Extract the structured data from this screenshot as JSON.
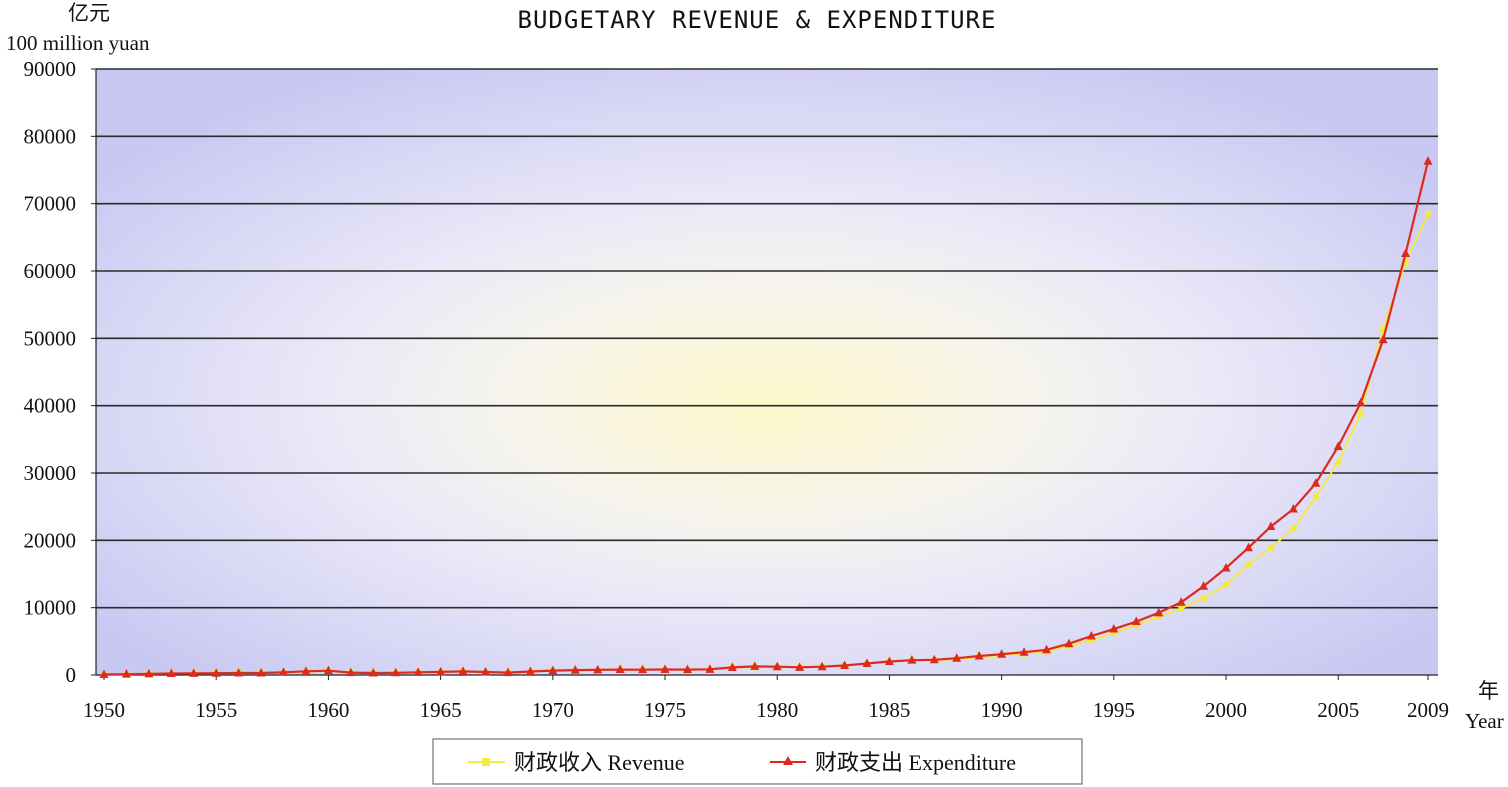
{
  "chart_data": {
    "type": "line",
    "title": "BUDGETARY REVENUE & EXPENDITURE",
    "y_unit_cn": "亿元",
    "y_unit_en": "100 million yuan",
    "x_unit_cn": "年",
    "x_unit_en": "Year",
    "ylim": [
      0,
      90000
    ],
    "xlim": [
      1950,
      2009
    ],
    "grid": true,
    "legend_position": "bottom",
    "yticks": [
      0,
      10000,
      20000,
      30000,
      40000,
      50000,
      60000,
      70000,
      80000,
      90000
    ],
    "xticks": [
      1950,
      1955,
      1960,
      1965,
      1970,
      1975,
      1980,
      1985,
      1990,
      1995,
      2000,
      2005,
      2009
    ],
    "x": [
      1950,
      1951,
      1952,
      1953,
      1954,
      1955,
      1956,
      1957,
      1958,
      1959,
      1960,
      1961,
      1962,
      1963,
      1964,
      1965,
      1966,
      1967,
      1968,
      1969,
      1970,
      1971,
      1972,
      1973,
      1974,
      1975,
      1976,
      1977,
      1978,
      1979,
      1980,
      1981,
      1982,
      1983,
      1984,
      1985,
      1986,
      1987,
      1988,
      1989,
      1990,
      1991,
      1992,
      1993,
      1994,
      1995,
      1996,
      1997,
      1998,
      1999,
      2000,
      2001,
      2002,
      2003,
      2004,
      2005,
      2006,
      2007,
      2008,
      2009
    ],
    "series": [
      {
        "name": "财政收入 Revenue",
        "color": "#f2ea3c",
        "marker": "square",
        "values": [
          62,
          125,
          184,
          222,
          262,
          272,
          287,
          304,
          380,
          487,
          572,
          356,
          313,
          342,
          400,
          473,
          558,
          419,
          361,
          527,
          663,
          744,
          767,
          809,
          783,
          816,
          776,
          874,
          1132,
          1146,
          1160,
          1176,
          1212,
          1367,
          1643,
          2005,
          2122,
          2199,
          2357,
          2665,
          2937,
          3149,
          3483,
          4349,
          5218,
          6242,
          7408,
          8651,
          9876,
          11444,
          13395,
          16386,
          18904,
          21715,
          26396,
          31649,
          38760,
          51322,
          61330,
          68518
        ]
      },
      {
        "name": "财政支出 Expenditure",
        "color": "#dd2a1f",
        "marker": "triangle",
        "values": [
          68,
          122,
          176,
          220,
          244,
          262,
          298,
          296,
          400,
          543,
          644,
          356,
          295,
          332,
          394,
          460,
          538,
          439,
          358,
          526,
          649,
          732,
          766,
          809,
          791,
          821,
          806,
          844,
          1122,
          1282,
          1229,
          1138,
          1230,
          1410,
          1701,
          2004,
          2205,
          2262,
          2491,
          2824,
          3084,
          3387,
          3742,
          4642,
          5793,
          6824,
          7938,
          9234,
          10798,
          13188,
          15887,
          18903,
          22053,
          24650,
          28487,
          33930,
          40423,
          49781,
          62593,
          76300
        ]
      }
    ]
  }
}
